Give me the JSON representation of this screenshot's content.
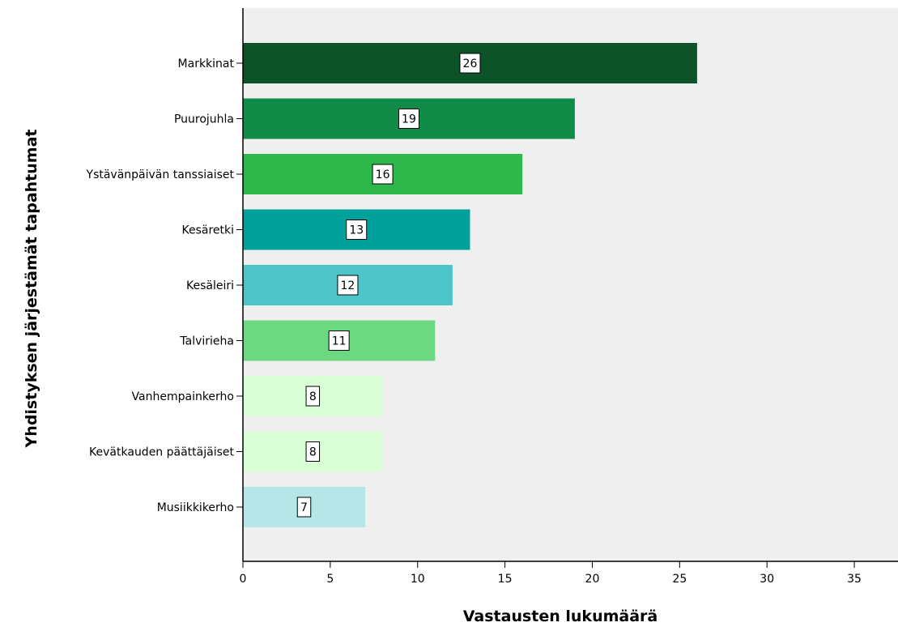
{
  "chart_data": {
    "type": "bar",
    "orientation": "horizontal",
    "categories": [
      "Markkinat",
      "Puurojuhla",
      "Ystävänpäivän tanssiaiset",
      "Kesäretki",
      "Kesäleiri",
      "Talvirieha",
      "Vanhempainkerho",
      "Kevätkauden päättäjäiset",
      "Musiikkikerho"
    ],
    "values": [
      26,
      19,
      16,
      13,
      12,
      11,
      8,
      8,
      7
    ],
    "value_labels": [
      "26",
      "19",
      "16",
      "13",
      "12",
      "11",
      "8",
      "8",
      "7"
    ],
    "colors": [
      "#0d5228",
      "#108c48",
      "#2eb84c",
      "#00a19b",
      "#4cc4c8",
      "#6cd882",
      "#d9fdd4",
      "#d9fdd4",
      "#b6e6e8"
    ],
    "plot_background": "#efefef",
    "xlabel": "Vastausten lukumäärä",
    "ylabel": "Yhdistyksen järjestämät tapahtumat",
    "xlim": [
      0,
      37.5
    ],
    "xticks": [
      "0",
      "5",
      "10",
      "15",
      "20",
      "25",
      "30",
      "35"
    ],
    "grid": false
  }
}
